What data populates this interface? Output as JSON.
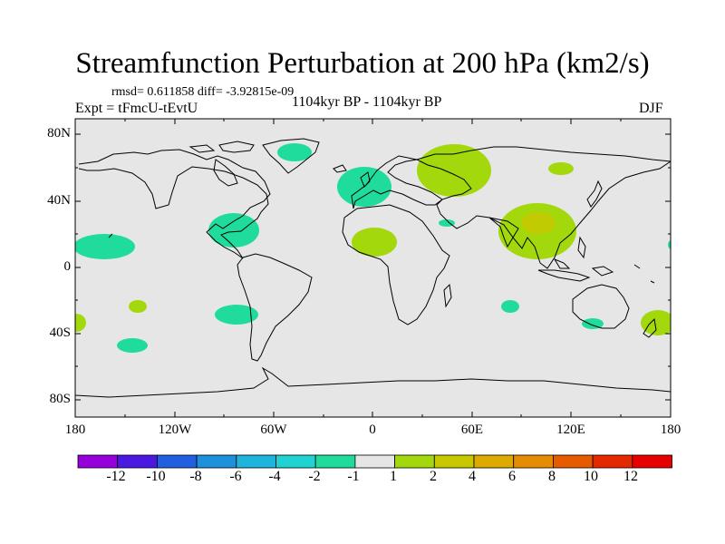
{
  "title": "Streamfunction Perturbation at 200 hPa (km2/s)",
  "stats_line": "rmsd= 0.611858 diff= -3.92815e-09",
  "experiment": "Expt = tFmcU-tEvtU",
  "period": "1104kyr BP - 1104kyr BP",
  "season": "DJF",
  "colors": {
    "land_ocean_fill": "#e6e6e6",
    "coastline": "#000000",
    "neg_1_2": "#20dc9c",
    "pos_1_2": "#a2d80c",
    "pos_2_4": "#c8c800"
  },
  "map": {
    "y_ticks": [
      "80N",
      "40N",
      "0",
      "40S",
      "80S"
    ],
    "x_ticks": [
      "180",
      "120W",
      "60W",
      "0",
      "60E",
      "120E",
      "180"
    ],
    "anomaly_regions": [
      {
        "name": "greenland",
        "lon": -30,
        "lat": 72,
        "level": -1
      },
      {
        "name": "north-atlantic-europe",
        "lon": -5,
        "lat": 50,
        "level": -1
      },
      {
        "name": "west-siberia",
        "lon": 52,
        "lat": 63,
        "level": 1
      },
      {
        "name": "north-pacific-east-asia",
        "lon": 118,
        "lat": 64,
        "level": 1
      },
      {
        "name": "south-asia",
        "lon": 103,
        "lat": 23,
        "level": 1
      },
      {
        "name": "south-asia-core",
        "lon": 102,
        "lat": 25,
        "level": 2
      },
      {
        "name": "sahara",
        "lon": 3,
        "lat": 14,
        "level": 1
      },
      {
        "name": "arabia",
        "lon": 47,
        "lat": 25,
        "level": -1
      },
      {
        "name": "gulf-of-mexico",
        "lon": -88,
        "lat": 23,
        "level": -1
      },
      {
        "name": "central-pacific",
        "lon": -165,
        "lat": 12,
        "level": -1
      },
      {
        "name": "south-pacific-a",
        "lon": -145,
        "lat": -22,
        "level": 1
      },
      {
        "name": "south-pacific-b",
        "lon": -88,
        "lat": -26,
        "level": -1
      },
      {
        "name": "south-pacific-c",
        "lon": -150,
        "lat": -44,
        "level": -1
      },
      {
        "name": "west-edge",
        "lon": -178,
        "lat": -30,
        "level": 1
      },
      {
        "name": "indian-ocean",
        "lon": 88,
        "lat": -21,
        "level": -1
      },
      {
        "name": "australia",
        "lon": 136,
        "lat": -31,
        "level": -1
      },
      {
        "name": "tasman",
        "lon": 172,
        "lat": -31,
        "level": 1
      },
      {
        "name": "east-edge-north",
        "lon": 180,
        "lat": 13,
        "level": -1
      }
    ]
  },
  "colorbar": {
    "labels": [
      "-12",
      "-10",
      "-8",
      "-6",
      "-4",
      "-2",
      "-1",
      "1",
      "2",
      "4",
      "6",
      "8",
      "10",
      "12"
    ],
    "colors": [
      "#9600dc",
      "#4a18e0",
      "#2060e0",
      "#1e90dc",
      "#1eb4dc",
      "#20d2d2",
      "#20dc9c",
      "#e6e6e6",
      "#a2d80c",
      "#c8c800",
      "#dcaa00",
      "#e68c00",
      "#e65a00",
      "#e62800",
      "#e60000"
    ]
  }
}
